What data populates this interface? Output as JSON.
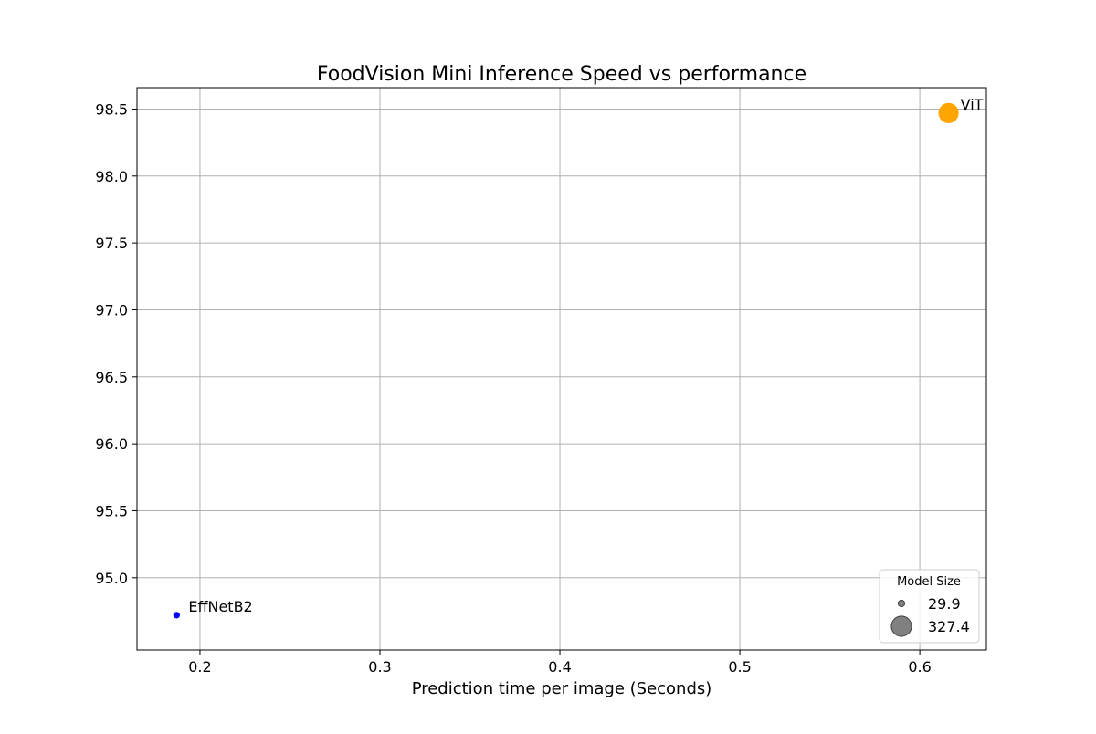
{
  "chart_data": {
    "type": "scatter",
    "title": "FoodVision Mini Inference Speed vs performance",
    "xlabel": "Prediction time per image (Seconds)",
    "ylabel": "",
    "xlim": [
      0.165,
      0.637
    ],
    "ylim": [
      94.46,
      98.66
    ],
    "xticks": [
      {
        "value": 0.2,
        "label": "0.2"
      },
      {
        "value": 0.3,
        "label": "0.3"
      },
      {
        "value": 0.4,
        "label": "0.4"
      },
      {
        "value": 0.5,
        "label": "0.5"
      },
      {
        "value": 0.6,
        "label": "0.6"
      }
    ],
    "yticks": [
      {
        "value": 95.0,
        "label": "95.0"
      },
      {
        "value": 95.5,
        "label": "95.5"
      },
      {
        "value": 96.0,
        "label": "96.0"
      },
      {
        "value": 96.5,
        "label": "96.5"
      },
      {
        "value": 97.0,
        "label": "97.0"
      },
      {
        "value": 97.5,
        "label": "97.5"
      },
      {
        "value": 98.0,
        "label": "98.0"
      },
      {
        "value": 98.5,
        "label": "98.5"
      }
    ],
    "grid": true,
    "points": [
      {
        "label": "EffNetB2",
        "x": 0.187,
        "y": 94.72,
        "size": 29.9,
        "color": "#0000ff"
      },
      {
        "label": "ViT",
        "x": 0.616,
        "y": 98.47,
        "size": 327.4,
        "color": "#ffa500"
      }
    ],
    "legend": {
      "title": "Model Size",
      "placement": "lower-right",
      "entries": [
        {
          "label": "29.9",
          "size": 29.9
        },
        {
          "label": "327.4",
          "size": 327.4
        }
      ]
    }
  }
}
